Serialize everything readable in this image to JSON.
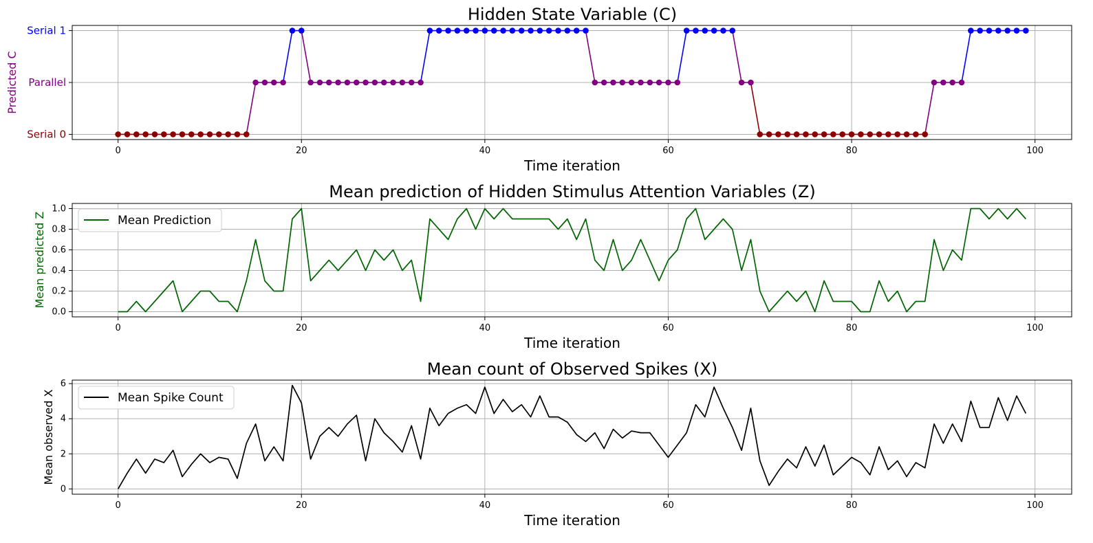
{
  "chart_data": [
    {
      "type": "line",
      "title": "Hidden State Variable (C)",
      "xlabel": "Time iteration",
      "ylabel": "Predicted C",
      "xlim": [
        -5,
        104
      ],
      "ylim": [
        -0.1,
        2.1
      ],
      "xticks": [
        0,
        20,
        40,
        60,
        80,
        100
      ],
      "xtick_labels": [
        "0",
        "20",
        "40",
        "60",
        "80",
        "100"
      ],
      "yticks": [
        0,
        1,
        2
      ],
      "ytick_labels": [
        "Serial 0",
        "Parallel",
        "Serial 1"
      ],
      "grid": true,
      "markers": true,
      "colors": {
        "state_0": "#8b0000",
        "state_1": "#800080",
        "state_2": "#0000ff",
        "ylabel": "#800080"
      },
      "x": [
        0,
        1,
        2,
        3,
        4,
        5,
        6,
        7,
        8,
        9,
        10,
        11,
        12,
        13,
        14,
        15,
        16,
        17,
        18,
        19,
        20,
        21,
        22,
        23,
        24,
        25,
        26,
        27,
        28,
        29,
        30,
        31,
        32,
        33,
        34,
        35,
        36,
        37,
        38,
        39,
        40,
        41,
        42,
        43,
        44,
        45,
        46,
        47,
        48,
        49,
        50,
        51,
        52,
        53,
        54,
        55,
        56,
        57,
        58,
        59,
        60,
        61,
        62,
        63,
        64,
        65,
        66,
        67,
        68,
        69,
        70,
        71,
        72,
        73,
        74,
        75,
        76,
        77,
        78,
        79,
        80,
        81,
        82,
        83,
        84,
        85,
        86,
        87,
        88,
        89,
        90,
        91,
        92,
        93,
        94,
        95,
        96,
        97,
        98,
        99
      ],
      "values": [
        0,
        0,
        0,
        0,
        0,
        0,
        0,
        0,
        0,
        0,
        0,
        0,
        0,
        0,
        0,
        1,
        1,
        1,
        1,
        2,
        2,
        1,
        1,
        1,
        1,
        1,
        1,
        1,
        1,
        1,
        1,
        1,
        1,
        1,
        2,
        2,
        2,
        2,
        2,
        2,
        2,
        2,
        2,
        2,
        2,
        2,
        2,
        2,
        2,
        2,
        2,
        2,
        1,
        1,
        1,
        1,
        1,
        1,
        1,
        1,
        1,
        1,
        2,
        2,
        2,
        2,
        2,
        2,
        1,
        1,
        0,
        0,
        0,
        0,
        0,
        0,
        0,
        0,
        0,
        0,
        0,
        0,
        0,
        0,
        0,
        0,
        0,
        0,
        0,
        1,
        1,
        1,
        1,
        2,
        2,
        2,
        2,
        2,
        2,
        2
      ]
    },
    {
      "type": "line",
      "title": "Mean prediction of Hidden Stimulus Attention Variables (Z)",
      "xlabel": "Time iteration",
      "ylabel": "Mean predicted Z",
      "xlim": [
        -5,
        104
      ],
      "ylim": [
        -0.05,
        1.05
      ],
      "xticks": [
        0,
        20,
        40,
        60,
        80,
        100
      ],
      "xtick_labels": [
        "0",
        "20",
        "40",
        "60",
        "80",
        "100"
      ],
      "yticks": [
        0,
        0.2,
        0.4,
        0.6,
        0.8,
        1.0
      ],
      "ytick_labels": [
        "0.0",
        "0.2",
        "0.4",
        "0.6",
        "0.8",
        "1.0"
      ],
      "grid": true,
      "legend": "top-left",
      "colors": {
        "line": "#006400",
        "ylabel": "#006400"
      },
      "series": [
        {
          "name": "Mean Prediction",
          "values": [
            0,
            0,
            0.1,
            0,
            0.1,
            0.2,
            0.3,
            0,
            0.1,
            0.2,
            0.2,
            0.1,
            0.1,
            0,
            0.3,
            0.7,
            0.3,
            0.2,
            0.2,
            0.9,
            1.0,
            0.3,
            0.4,
            0.5,
            0.4,
            0.5,
            0.6,
            0.4,
            0.6,
            0.5,
            0.6,
            0.4,
            0.5,
            0.1,
            0.9,
            0.8,
            0.7,
            0.9,
            1.0,
            0.8,
            1.0,
            0.9,
            1.0,
            0.9,
            0.9,
            0.9,
            0.9,
            0.9,
            0.8,
            0.9,
            0.7,
            0.9,
            0.5,
            0.4,
            0.7,
            0.4,
            0.5,
            0.7,
            0.5,
            0.3,
            0.5,
            0.6,
            0.9,
            1.0,
            0.7,
            0.8,
            0.9,
            0.8,
            0.4,
            0.7,
            0.2,
            0,
            0.1,
            0.2,
            0.1,
            0.2,
            0,
            0.3,
            0.1,
            0.1,
            0.1,
            0,
            0,
            0.3,
            0.1,
            0.2,
            0,
            0.1,
            0.1,
            0.7,
            0.4,
            0.6,
            0.5,
            1.0,
            1.0,
            0.9,
            1.0,
            0.9,
            1.0,
            0.9
          ]
        }
      ]
    },
    {
      "type": "line",
      "title": "Mean count of Observed Spikes (X)",
      "xlabel": "Time iteration",
      "ylabel": "Mean observed X",
      "xlim": [
        -5,
        104
      ],
      "ylim": [
        -0.3,
        6.2
      ],
      "xticks": [
        0,
        20,
        40,
        60,
        80,
        100
      ],
      "xtick_labels": [
        "0",
        "20",
        "40",
        "60",
        "80",
        "100"
      ],
      "yticks": [
        0,
        2,
        4,
        6
      ],
      "ytick_labels": [
        "0",
        "2",
        "4",
        "6"
      ],
      "grid": true,
      "legend": "top-left",
      "colors": {
        "line": "#000000",
        "ylabel": "#000000"
      },
      "series": [
        {
          "name": "Mean Spike Count",
          "values": [
            0,
            0.9,
            1.7,
            0.9,
            1.7,
            1.5,
            2.2,
            0.7,
            1.4,
            2.0,
            1.5,
            1.8,
            1.7,
            0.6,
            2.6,
            3.7,
            1.6,
            2.4,
            1.6,
            5.9,
            4.9,
            1.7,
            3.0,
            3.5,
            3.0,
            3.7,
            4.2,
            1.6,
            4.0,
            3.2,
            2.7,
            2.1,
            3.6,
            1.7,
            4.6,
            3.6,
            4.3,
            4.6,
            4.8,
            4.3,
            5.8,
            4.3,
            5.1,
            4.4,
            4.8,
            4.1,
            5.3,
            4.1,
            4.1,
            3.8,
            3.1,
            2.7,
            3.2,
            2.3,
            3.4,
            2.9,
            3.3,
            3.2,
            3.2,
            2.5,
            1.8,
            2.5,
            3.2,
            4.8,
            4.1,
            5.8,
            4.6,
            3.5,
            2.2,
            4.6,
            1.6,
            0.2,
            1.0,
            1.7,
            1.2,
            2.4,
            1.3,
            2.5,
            0.8,
            1.3,
            1.8,
            1.5,
            0.8,
            2.4,
            1.1,
            1.6,
            0.7,
            1.5,
            1.2,
            3.7,
            2.6,
            3.7,
            2.7,
            5.0,
            3.5,
            3.5,
            5.2,
            3.9,
            5.3,
            4.3
          ]
        }
      ]
    }
  ]
}
